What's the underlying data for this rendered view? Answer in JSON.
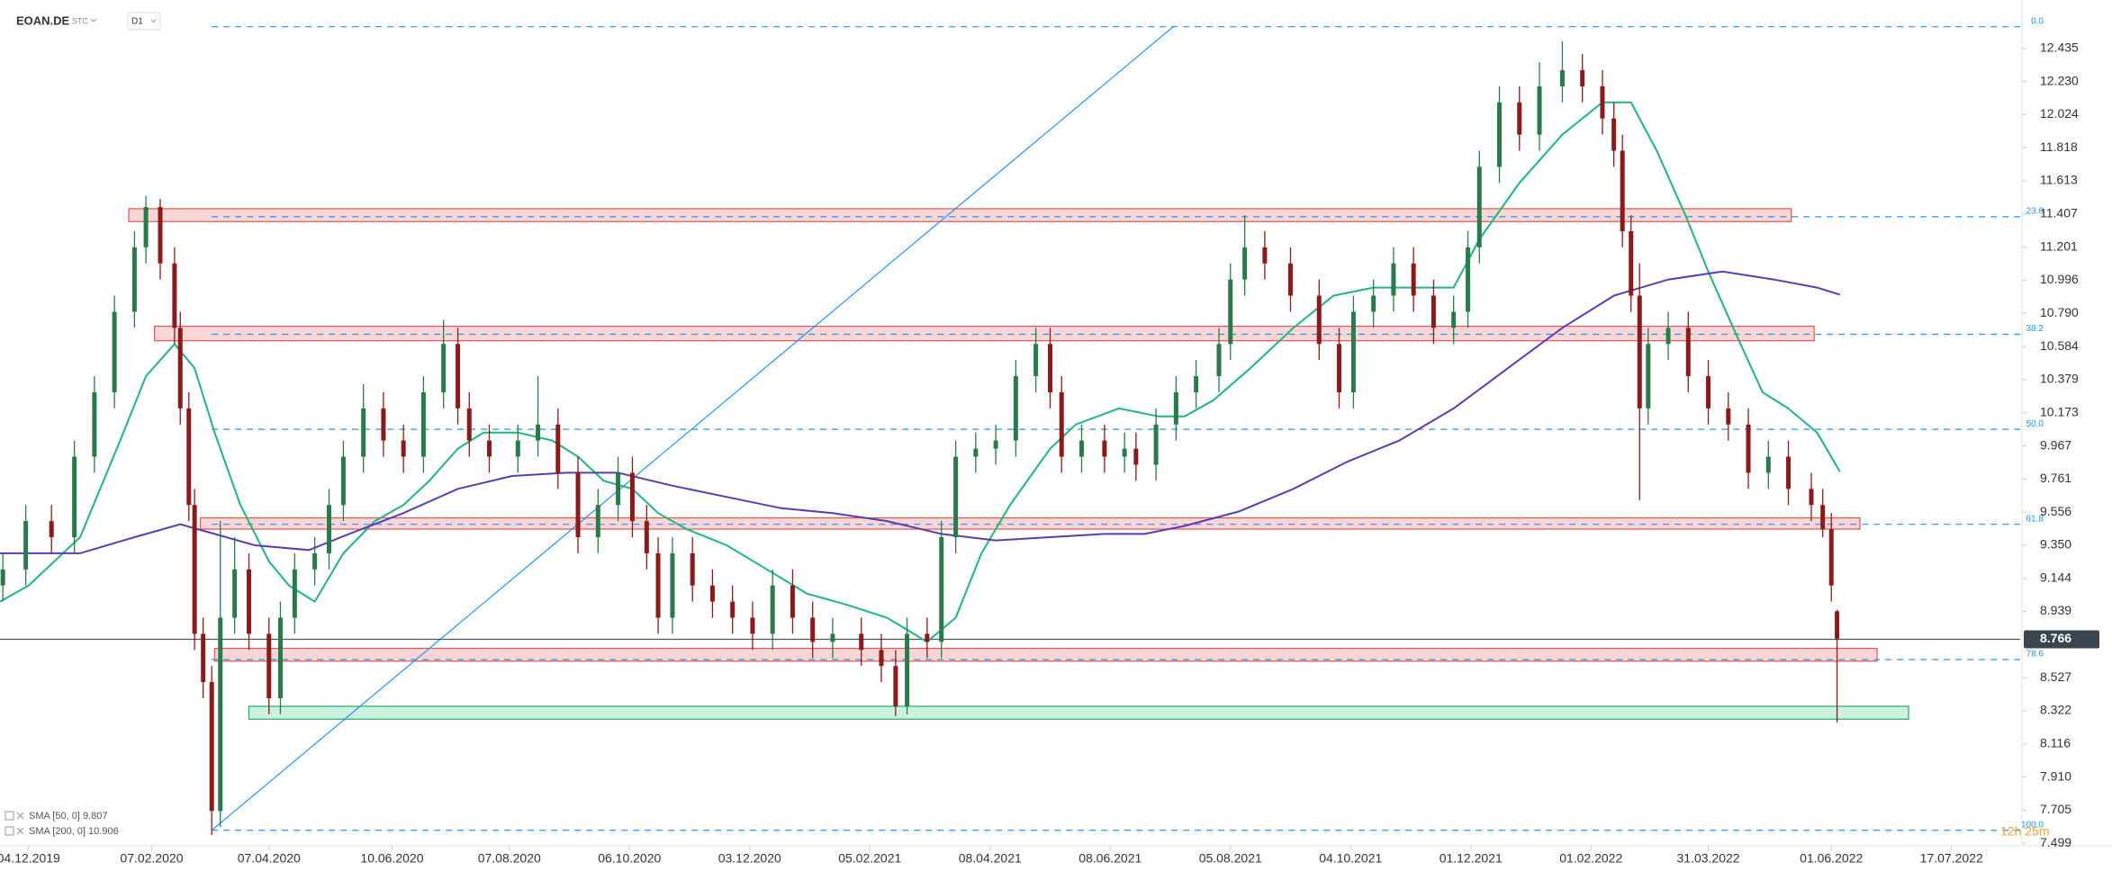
{
  "header": {
    "symbol": "EOAN.DE",
    "label": "STC",
    "timeframe": "D1"
  },
  "countdown": "12h 25m",
  "chart_data": {
    "type": "candlestick",
    "up_color": "#2b7a4b",
    "down_color": "#8b1a1a",
    "x": [
      -9,
      -1,
      8,
      16,
      23,
      30,
      37,
      41,
      46,
      51,
      53,
      56,
      58,
      61,
      64,
      67,
      72,
      77,
      84,
      88,
      93,
      100,
      105,
      110,
      117,
      124,
      131,
      138,
      145,
      150,
      154,
      161,
      171,
      178,
      185,
      192,
      199,
      206,
      211,
      216,
      220,
      225,
      232,
      239,
      246,
      253,
      260,
      267,
      274,
      281,
      291,
      298,
      303,
      307,
      314,
      319,
      324,
      331,
      338,
      345,
      352,
      357,
      361,
      368,
      376,
      383,
      387,
      394,
      401,
      408,
      416,
      420,
      425,
      432,
      441,
      451,
      458,
      463,
      470,
      477,
      484,
      491,
      498,
      503,
      507,
      514,
      521,
      528,
      536,
      543,
      550,
      554,
      557,
      560,
      563,
      566,
      573,
      580,
      587,
      594,
      601,
      608,
      615,
      623,
      627,
      630,
      632
    ],
    "open": [
      9.1,
      9.2,
      9.5,
      9.4,
      9.9,
      10.3,
      10.8,
      11.2,
      11.45,
      11.1,
      10.7,
      10.2,
      9.6,
      8.8,
      8.5,
      7.7,
      8.9,
      9.2,
      8.8,
      8.4,
      8.9,
      9.2,
      9.3,
      9.6,
      9.9,
      10.2,
      10.0,
      9.9,
      10.3,
      10.6,
      10.2,
      10.0,
      9.9,
      10.0,
      10.1,
      9.8,
      9.4,
      9.6,
      9.8,
      9.5,
      9.3,
      8.9,
      9.3,
      9.1,
      9.0,
      8.9,
      8.8,
      9.1,
      8.9,
      8.75,
      8.8,
      8.7,
      8.6,
      8.35,
      8.8,
      8.75,
      9.4,
      9.9,
      9.95,
      10.0,
      10.4,
      10.6,
      10.3,
      9.9,
      10.0,
      9.9,
      9.95,
      9.85,
      10.1,
      10.3,
      10.4,
      10.6,
      11.0,
      11.2,
      11.1,
      10.9,
      10.6,
      10.3,
      10.8,
      10.9,
      11.1,
      10.9,
      10.7,
      10.8,
      11.2,
      11.7,
      12.1,
      11.9,
      12.2,
      12.3,
      12.2,
      12.0,
      11.8,
      11.3,
      10.9,
      10.2,
      10.6,
      10.7,
      10.4,
      10.2,
      10.1,
      9.8,
      9.9,
      9.7,
      9.6,
      9.45,
      8.94
    ],
    "high": [
      9.3,
      9.6,
      9.6,
      10.0,
      10.4,
      10.9,
      11.3,
      11.52,
      11.5,
      11.2,
      10.8,
      10.3,
      9.7,
      8.9,
      8.6,
      9.5,
      9.4,
      9.3,
      8.9,
      9.0,
      9.3,
      9.4,
      9.7,
      10.0,
      10.35,
      10.3,
      10.1,
      10.4,
      10.75,
      10.7,
      10.3,
      10.1,
      10.1,
      10.4,
      10.2,
      9.9,
      9.7,
      9.9,
      9.9,
      9.6,
      9.4,
      9.4,
      9.4,
      9.2,
      9.1,
      9.0,
      9.2,
      9.2,
      9.0,
      8.9,
      8.9,
      8.8,
      8.7,
      8.9,
      8.9,
      9.5,
      10.0,
      10.05,
      10.1,
      10.5,
      10.7,
      10.7,
      10.4,
      10.1,
      10.1,
      10.05,
      10.05,
      10.2,
      10.4,
      10.5,
      10.7,
      11.1,
      11.4,
      11.3,
      11.2,
      11.0,
      10.7,
      10.9,
      11.0,
      11.2,
      11.2,
      11.0,
      10.9,
      11.3,
      11.8,
      12.2,
      12.2,
      12.35,
      12.48,
      12.4,
      12.3,
      12.1,
      11.9,
      11.4,
      11.1,
      10.7,
      10.8,
      10.8,
      10.5,
      10.3,
      10.2,
      10.0,
      10.0,
      9.8,
      9.7,
      9.55,
      8.95
    ],
    "low": [
      9.0,
      9.1,
      9.3,
      9.3,
      9.8,
      10.2,
      10.7,
      11.1,
      11.0,
      10.6,
      10.1,
      9.5,
      8.7,
      8.4,
      7.55,
      7.6,
      8.8,
      8.7,
      8.3,
      8.3,
      8.8,
      9.1,
      9.2,
      9.5,
      9.8,
      9.9,
      9.8,
      9.8,
      10.2,
      10.1,
      9.9,
      9.8,
      9.8,
      9.9,
      9.7,
      9.3,
      9.3,
      9.5,
      9.4,
      9.2,
      8.8,
      8.8,
      9.0,
      8.9,
      8.8,
      8.7,
      8.7,
      8.8,
      8.65,
      8.65,
      8.6,
      8.5,
      8.29,
      8.3,
      8.65,
      8.65,
      9.3,
      9.8,
      9.85,
      9.9,
      10.3,
      10.2,
      9.8,
      9.8,
      9.8,
      9.8,
      9.75,
      9.75,
      10.0,
      10.2,
      10.3,
      10.5,
      10.9,
      11.0,
      10.8,
      10.5,
      10.2,
      10.2,
      10.7,
      10.8,
      10.8,
      10.6,
      10.6,
      10.7,
      11.1,
      11.6,
      11.8,
      11.8,
      12.1,
      12.1,
      11.9,
      11.7,
      11.2,
      10.8,
      9.63,
      10.1,
      10.5,
      10.3,
      10.1,
      10.0,
      9.7,
      9.7,
      9.6,
      9.5,
      9.4,
      9.0,
      8.25
    ],
    "close": [
      9.2,
      9.5,
      9.4,
      9.9,
      10.3,
      10.8,
      11.2,
      11.45,
      11.1,
      10.7,
      10.2,
      9.6,
      8.8,
      8.5,
      7.7,
      8.9,
      9.2,
      8.8,
      8.4,
      8.9,
      9.2,
      9.3,
      9.6,
      9.9,
      10.2,
      10.0,
      9.9,
      10.3,
      10.6,
      10.2,
      10.0,
      9.9,
      10.0,
      10.1,
      9.8,
      9.4,
      9.6,
      9.8,
      9.5,
      9.3,
      8.9,
      9.3,
      9.1,
      9.0,
      8.9,
      8.8,
      9.1,
      8.9,
      8.75,
      8.8,
      8.7,
      8.6,
      8.35,
      8.8,
      8.75,
      9.4,
      9.9,
      9.95,
      10.0,
      10.4,
      10.6,
      10.3,
      9.9,
      10.0,
      9.9,
      9.95,
      9.85,
      10.1,
      10.3,
      10.4,
      10.6,
      11.0,
      11.2,
      11.1,
      10.9,
      10.6,
      10.3,
      10.8,
      10.9,
      11.1,
      10.9,
      10.7,
      10.8,
      11.2,
      11.7,
      12.1,
      11.9,
      12.2,
      12.3,
      12.2,
      12.0,
      11.8,
      11.3,
      10.9,
      10.2,
      10.6,
      10.7,
      10.4,
      10.2,
      10.1,
      9.8,
      9.9,
      9.7,
      9.6,
      9.45,
      9.1,
      8.77
    ],
    "series": [
      {
        "name": "SMA [50, 0]",
        "color": "#1fb67b",
        "x": [
          -10,
          0,
          18,
          32,
          41,
          51,
          58,
          65,
          74,
          84,
          91,
          100,
          110,
          121,
          131,
          140,
          150,
          159,
          171,
          183,
          192,
          201,
          211,
          220,
          230,
          244,
          258,
          272,
          286,
          300,
          314,
          324,
          333,
          343,
          357,
          366,
          381,
          395,
          404,
          414,
          427,
          442,
          456,
          470,
          489,
          498,
          507,
          521,
          536,
          550,
          560,
          569,
          579,
          587,
          597,
          606,
          615,
          625,
          633
        ],
        "values": [
          9.0,
          9.1,
          9.4,
          10.0,
          10.4,
          10.6,
          10.45,
          10.05,
          9.6,
          9.25,
          9.1,
          9.0,
          9.3,
          9.5,
          9.6,
          9.75,
          9.95,
          10.05,
          10.05,
          10.0,
          9.9,
          9.75,
          9.7,
          9.55,
          9.45,
          9.35,
          9.2,
          9.05,
          8.98,
          8.9,
          8.75,
          8.9,
          9.3,
          9.6,
          9.95,
          10.1,
          10.2,
          10.15,
          10.15,
          10.25,
          10.45,
          10.7,
          10.9,
          10.95,
          10.95,
          10.95,
          11.25,
          11.6,
          11.9,
          12.1,
          12.1,
          11.8,
          11.4,
          11.05,
          10.65,
          10.3,
          10.2,
          10.05,
          9.807
        ]
      },
      {
        "name": "SMA [200, 0]",
        "color": "#5b3db3",
        "x": [
          -10,
          0,
          18,
          37,
          53,
          65,
          79,
          98,
          112,
          131,
          150,
          169,
          188,
          206,
          225,
          244,
          263,
          281,
          300,
          319,
          338,
          357,
          376,
          390,
          404,
          423,
          442,
          461,
          479,
          498,
          517,
          536,
          554,
          573,
          592,
          610,
          625,
          633
        ],
        "values": [
          9.3,
          9.3,
          9.3,
          9.4,
          9.48,
          9.42,
          9.35,
          9.32,
          9.42,
          9.55,
          9.7,
          9.78,
          9.8,
          9.8,
          9.72,
          9.65,
          9.58,
          9.55,
          9.5,
          9.42,
          9.38,
          9.4,
          9.42,
          9.42,
          9.47,
          9.56,
          9.7,
          9.87,
          10.0,
          10.2,
          10.45,
          10.7,
          10.9,
          11.0,
          11.05,
          11.0,
          10.95,
          10.906
        ]
      }
    ],
    "zones": [
      {
        "start": 35,
        "end": 616,
        "top": 11.44,
        "bottom": 11.36,
        "fill": "#f9cfcf",
        "stroke": "#e05555"
      },
      {
        "start": 44,
        "end": 624,
        "top": 10.71,
        "bottom": 10.62,
        "fill": "#f9cfcf",
        "stroke": "#e05555"
      },
      {
        "start": 60,
        "end": 640,
        "top": 9.52,
        "bottom": 9.45,
        "fill": "#f9cfcf",
        "stroke": "#e05555"
      },
      {
        "start": 65,
        "end": 646,
        "top": 8.71,
        "bottom": 8.63,
        "fill": "#f9cfcf",
        "stroke": "#e05555"
      },
      {
        "start": 77,
        "end": 657,
        "top": 8.35,
        "bottom": 8.27,
        "fill": "#c4efd9",
        "stroke": "#2aa86e"
      }
    ],
    "fib": {
      "start": 64,
      "color": "#2196f3",
      "levels": [
        {
          "label": "0.0",
          "price": 12.57
        },
        {
          "label": "23.6",
          "price": 11.39
        },
        {
          "label": "38.2",
          "price": 10.66
        },
        {
          "label": "50.0",
          "price": 10.07
        },
        {
          "label": "61.8",
          "price": 9.48
        },
        {
          "label": "78.6",
          "price": 8.64
        },
        {
          "label": "100.0",
          "price": 7.58
        }
      ]
    },
    "trendline": {
      "x": [
        64,
        400
      ],
      "y": [
        7.58,
        12.57
      ],
      "color": "#2196f3"
    },
    "last_price": 8.766,
    "xlim": [
      -10,
      696
    ],
    "ylim": [
      7.45,
      12.66
    ],
    "xticks": [
      {
        "value": 0,
        "label": "04.12.2019"
      },
      {
        "value": 43,
        "label": "07.02.2020"
      },
      {
        "value": 84,
        "label": "07.04.2020"
      },
      {
        "value": 127,
        "label": "10.06.2020"
      },
      {
        "value": 168,
        "label": "07.08.2020"
      },
      {
        "value": 210,
        "label": "06.10.2020"
      },
      {
        "value": 252,
        "label": "03.12.2020"
      },
      {
        "value": 294,
        "label": "05.02.2021"
      },
      {
        "value": 336,
        "label": "08.04.2021"
      },
      {
        "value": 378,
        "label": "08.06.2021"
      },
      {
        "value": 420,
        "label": "05.08.2021"
      },
      {
        "value": 462,
        "label": "04.10.2021"
      },
      {
        "value": 504,
        "label": "01.12.2021"
      },
      {
        "value": 546,
        "label": "01.02.2022"
      },
      {
        "value": 587,
        "label": "31.03.2022"
      },
      {
        "value": 630,
        "label": "01.06.2022"
      },
      {
        "value": 672,
        "label": "17.07.2022"
      }
    ],
    "yticks": [
      12.435,
      {
        "value": 12.23,
        "label": "12.230"
      },
      12.024,
      11.818,
      11.613,
      11.407,
      11.201,
      10.996,
      {
        "value": 10.79,
        "label": "10.790"
      },
      10.584,
      10.379,
      10.173,
      9.967,
      9.761,
      9.556,
      {
        "value": 9.35,
        "label": "9.350"
      },
      9.144,
      8.939,
      8.527,
      8.322,
      8.116,
      {
        "value": 7.91,
        "label": "7.910"
      },
      7.705,
      7.499
    ]
  }
}
